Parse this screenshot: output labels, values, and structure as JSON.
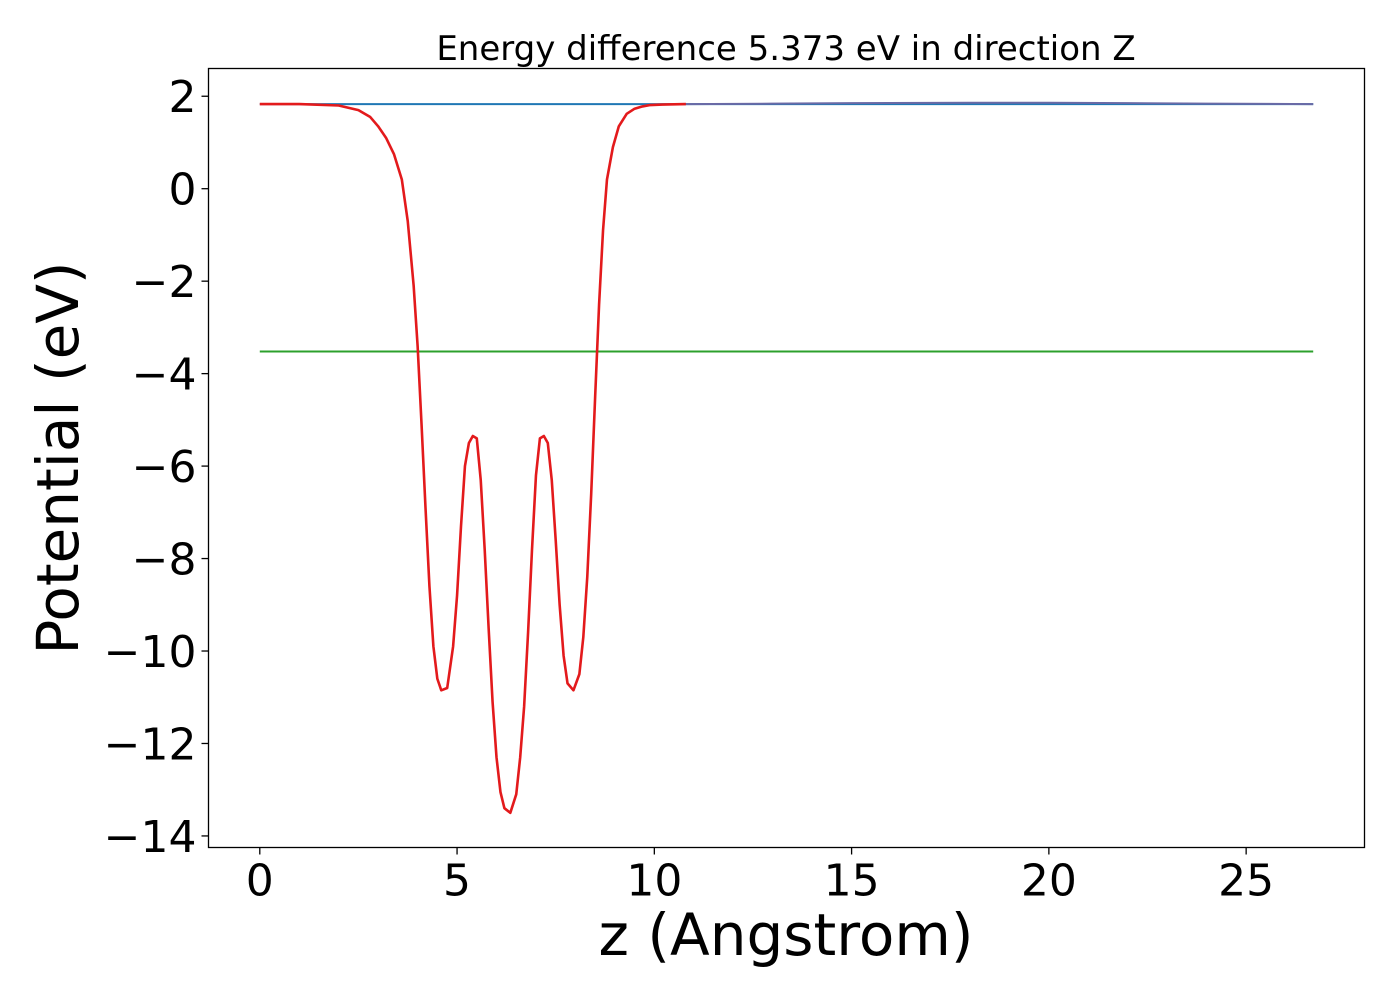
{
  "chart_data": {
    "type": "line",
    "title": "Energy difference 5.373 eV in direction Z",
    "xlabel": "z (Angstrom)",
    "ylabel": "Potential (eV)",
    "xlim": [
      -1.3,
      28.0
    ],
    "ylim": [
      -14.25,
      2.6
    ],
    "xticks": [
      0,
      5,
      10,
      15,
      20,
      25
    ],
    "xtick_labels": [
      "0",
      "5",
      "10",
      "15",
      "20",
      "25"
    ],
    "yticks": [
      2,
      0,
      -2,
      -4,
      -6,
      -8,
      -10,
      -12,
      -14
    ],
    "ytick_labels": [
      "2",
      "0",
      "−2",
      "−4",
      "−6",
      "−8",
      "−10",
      "−12",
      "−14"
    ],
    "grid": false,
    "legend": "none",
    "series": [
      {
        "color": "#1f77b4",
        "x": [
          0,
          26.7
        ],
        "y": [
          1.83,
          1.83
        ]
      },
      {
        "color": "#2ca02c",
        "x": [
          0,
          26.7
        ],
        "y": [
          -3.52,
          -3.52
        ]
      },
      {
        "color": "#6a6aa6",
        "x": [
          10.8,
          13,
          15,
          18,
          20,
          22,
          24,
          26.7
        ],
        "y": [
          1.83,
          1.84,
          1.85,
          1.86,
          1.86,
          1.85,
          1.84,
          1.83
        ]
      },
      {
        "color": "#e31a1c",
        "x": [
          0,
          1.0,
          2.0,
          2.5,
          2.8,
          3.0,
          3.2,
          3.4,
          3.6,
          3.75,
          3.9,
          4.0,
          4.1,
          4.2,
          4.3,
          4.4,
          4.5,
          4.6,
          4.75,
          4.9,
          5.0,
          5.1,
          5.2,
          5.3,
          5.4,
          5.5,
          5.6,
          5.7,
          5.8,
          5.9,
          6.0,
          6.1,
          6.2,
          6.35,
          6.5,
          6.6,
          6.7,
          6.8,
          6.9,
          7.0,
          7.1,
          7.2,
          7.3,
          7.4,
          7.5,
          7.6,
          7.7,
          7.8,
          7.95,
          8.1,
          8.2,
          8.3,
          8.4,
          8.5,
          8.6,
          8.7,
          8.8,
          8.95,
          9.1,
          9.3,
          9.5,
          9.7,
          9.9,
          10.2,
          10.8
        ],
        "y": [
          1.83,
          1.83,
          1.8,
          1.7,
          1.55,
          1.35,
          1.1,
          0.75,
          0.2,
          -0.7,
          -2.1,
          -3.4,
          -5.1,
          -6.9,
          -8.6,
          -9.9,
          -10.6,
          -10.85,
          -10.8,
          -9.9,
          -8.8,
          -7.3,
          -6.0,
          -5.5,
          -5.35,
          -5.4,
          -6.3,
          -7.8,
          -9.5,
          -11.1,
          -12.3,
          -13.05,
          -13.4,
          -13.5,
          -13.1,
          -12.3,
          -11.2,
          -9.6,
          -7.8,
          -6.2,
          -5.4,
          -5.35,
          -5.5,
          -6.3,
          -7.6,
          -9.0,
          -10.1,
          -10.7,
          -10.85,
          -10.5,
          -9.7,
          -8.4,
          -6.6,
          -4.5,
          -2.5,
          -0.9,
          0.2,
          0.9,
          1.35,
          1.62,
          1.73,
          1.78,
          1.81,
          1.82,
          1.83
        ]
      }
    ]
  }
}
